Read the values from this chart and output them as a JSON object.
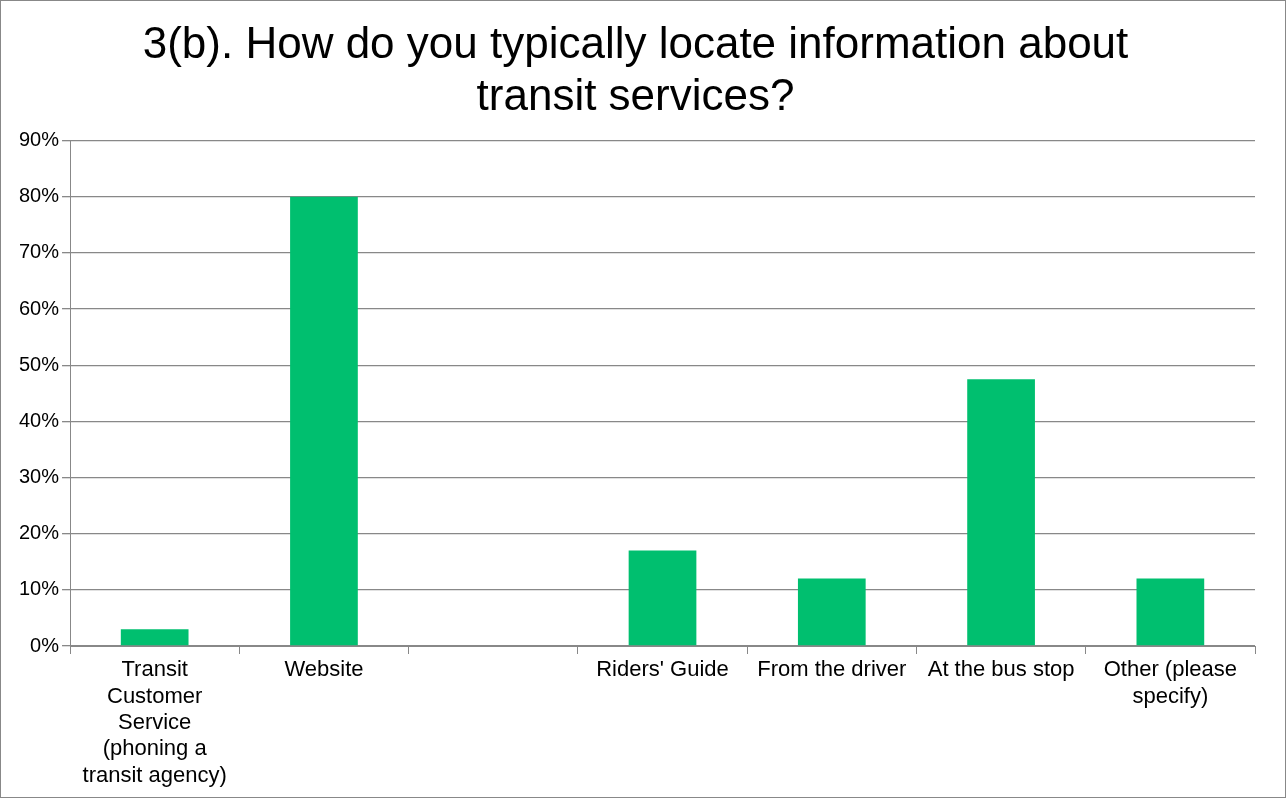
{
  "chart_data": {
    "type": "bar",
    "title": "3(b). How do you typically locate information about transit services?",
    "categories": [
      "Transit Customer Service (phoning a transit agency)",
      "Website",
      null,
      "Riders' Guide",
      "From the driver",
      "At the bus stop",
      "Other (please specify)"
    ],
    "values": [
      3,
      80,
      0,
      17,
      12,
      47.5,
      12
    ],
    "color": "#00bf6f",
    "ylim": [
      0,
      90
    ],
    "yticks": [
      {
        "value": 0,
        "label": "0%"
      },
      {
        "value": 10,
        "label": "10%"
      },
      {
        "value": 20,
        "label": "20%"
      },
      {
        "value": 30,
        "label": "30%"
      },
      {
        "value": 40,
        "label": "40%"
      },
      {
        "value": 50,
        "label": "50%"
      },
      {
        "value": 60,
        "label": "60%"
      },
      {
        "value": 70,
        "label": "70%"
      },
      {
        "value": 80,
        "label": "80%"
      },
      {
        "value": 90,
        "label": "90%"
      }
    ],
    "grid": "y",
    "legend": false
  }
}
